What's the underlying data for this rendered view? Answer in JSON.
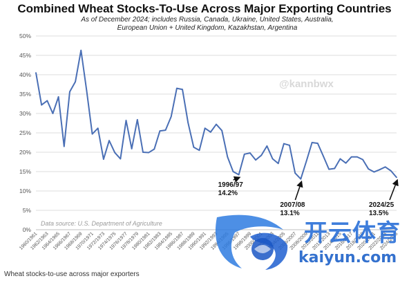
{
  "chart_data": {
    "type": "line",
    "title": "Combined Wheat Stocks-To-Use Across Major Exporting Countries",
    "subtitle_lines": [
      "As of December 2024; includes Russia, Canada, Ukraine, United States, Australia,",
      "European Union + United Kingdom, Kazakhstan, Argentina"
    ],
    "source_note": "Data source: U.S. Department of Agriculture",
    "watermark_handle": "@kannbwx",
    "ylim": [
      0,
      50
    ],
    "y_ticks": [
      "0%",
      "5%",
      "10%",
      "15%",
      "20%",
      "25%",
      "30%",
      "35%",
      "40%",
      "45%",
      "50%"
    ],
    "x_tick_labels": [
      "1960/1961",
      "1962/1963",
      "1964/1965",
      "1966/1967",
      "1968/1969",
      "1970/1971",
      "1972/1973",
      "1974/1975",
      "1976/1977",
      "1978/1979",
      "1980/1981",
      "1982/1983",
      "1984/1985",
      "1986/1987",
      "1988/1989",
      "1990/1991",
      "1992/1993",
      "1994/1995",
      "1996/1997",
      "1998/1999",
      "2000/2001",
      "2002/2003",
      "2004/2005",
      "2006/2007",
      "2008/2009",
      "2010/2011",
      "2012/2013",
      "2014/2015",
      "2016/2017",
      "2018/2019",
      "2020/2021",
      "2022/2023",
      "2024/2025"
    ],
    "x": [
      "1960/1961",
      "1961/1962",
      "1962/1963",
      "1963/1964",
      "1964/1965",
      "1965/1966",
      "1966/1967",
      "1967/1968",
      "1968/1969",
      "1969/1970",
      "1970/1971",
      "1971/1972",
      "1972/1973",
      "1973/1974",
      "1974/1975",
      "1975/1976",
      "1976/1977",
      "1977/1978",
      "1978/1979",
      "1979/1980",
      "1980/1981",
      "1981/1982",
      "1982/1983",
      "1983/1984",
      "1984/1985",
      "1985/1986",
      "1986/1987",
      "1987/1988",
      "1988/1989",
      "1989/1990",
      "1990/1991",
      "1991/1992",
      "1992/1993",
      "1993/1994",
      "1994/1995",
      "1995/1996",
      "1996/1997",
      "1997/1998",
      "1998/1999",
      "1999/2000",
      "2000/2001",
      "2001/2002",
      "2002/2003",
      "2003/2004",
      "2004/2005",
      "2005/2006",
      "2006/2007",
      "2007/2008",
      "2008/2009",
      "2009/2010",
      "2010/2011",
      "2011/2012",
      "2012/2013",
      "2013/2014",
      "2014/2015",
      "2015/2016",
      "2016/2017",
      "2017/2018",
      "2018/2019",
      "2019/2020",
      "2020/2021",
      "2021/2022",
      "2022/2023",
      "2023/2024",
      "2024/2025"
    ],
    "series": [
      {
        "color": "#4a6fb5",
        "values": [
          40.5,
          32.2,
          33.3,
          30.0,
          34.3,
          21.5,
          35.6,
          38.2,
          46.3,
          35.9,
          24.7,
          26.2,
          18.2,
          23.0,
          19.9,
          18.3,
          28.2,
          20.9,
          28.4,
          20.0,
          19.9,
          20.8,
          25.5,
          25.7,
          29.2,
          36.5,
          36.2,
          27.6,
          21.3,
          20.5,
          26.2,
          25.2,
          27.2,
          25.6,
          18.8,
          15.0,
          14.2,
          19.5,
          19.8,
          18.0,
          19.2,
          21.6,
          18.3,
          17.1,
          22.2,
          21.8,
          14.6,
          13.1,
          17.7,
          22.5,
          22.3,
          19.0,
          15.6,
          15.8,
          18.3,
          17.2,
          18.8,
          18.8,
          18.1,
          15.7,
          14.9,
          15.5,
          16.2,
          15.2,
          13.5
        ]
      }
    ],
    "annotations": [
      {
        "year_label": "1996/97",
        "value_label": "14.2%",
        "x": "1996/1997",
        "y": 14.2
      },
      {
        "year_label": "2007/08",
        "value_label": "13.1%",
        "x": "2007/2008",
        "y": 13.1
      },
      {
        "year_label": "2024/25",
        "value_label": "13.5%",
        "x": "2024/2025",
        "y": 13.5
      }
    ],
    "grid": true,
    "legend": "none"
  },
  "caption": "Wheat stocks-to-use across major exporters",
  "watermark": {
    "cn_text": "开云体育",
    "domain_text": "kaiyun.com"
  }
}
